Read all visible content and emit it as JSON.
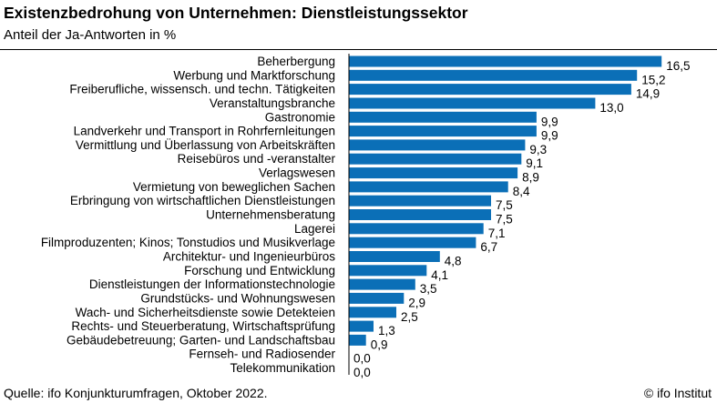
{
  "header": {
    "title": "Existenzbedrohung von Unternehmen: Dienstleistungssektor",
    "subtitle": "Anteil der Ja-Antworten in %"
  },
  "footer": {
    "source": "Quelle: ifo Konjunkturumfragen, Oktober 2022.",
    "brand": "© ifo Institut"
  },
  "colors": {
    "bar": "#0b6fb7",
    "axis": "#000000"
  },
  "chart_data": {
    "type": "bar",
    "orientation": "horizontal",
    "title": "Existenzbedrohung von Unternehmen: Dienstleistungssektor",
    "subtitle": "Anteil der Ja-Antworten in %",
    "xlim": [
      0,
      17
    ],
    "categories": [
      "Beherbergung",
      "Werbung und Marktforschung",
      "Freiberufliche, wissensch. und techn. Tätigkeiten",
      "Veranstaltungsbranche",
      "Gastronomie",
      "Landverkehr und Transport in Rohrfernleitungen",
      "Vermittlung und Überlassung von Arbeitskräften",
      "Reisebüros und -veranstalter",
      "Verlagswesen",
      "Vermietung von beweglichen Sachen",
      "Erbringung von wirtschaftlichen Dienstleistungen",
      "Unternehmensberatung",
      "Lagerei",
      "Filmproduzenten; Kinos; Tonstudios und Musikverlage",
      "Architektur- und Ingenieurbüros",
      "Forschung und Entwicklung",
      "Dienstleistungen der Informationstechnologie",
      "Grundstücks- und Wohnungswesen",
      "Wach- und Sicherheitsdienste sowie Detekteien",
      "Rechts- und Steuerberatung, Wirtschaftsprüfung",
      "Gebäudebetreuung; Garten- und Landschaftsbau",
      "Fernseh- und Radiosender",
      "Telekommunikation"
    ],
    "values": [
      16.5,
      15.2,
      14.9,
      13.0,
      9.9,
      9.9,
      9.3,
      9.1,
      8.9,
      8.4,
      7.5,
      7.5,
      7.1,
      6.7,
      4.8,
      4.1,
      3.5,
      2.9,
      2.5,
      1.3,
      0.9,
      0.0,
      0.0
    ],
    "value_labels": [
      "16,5",
      "15,2",
      "14,9",
      "13,0",
      "9,9",
      "9,9",
      "9,3",
      "9,1",
      "8,9",
      "8,4",
      "7,5",
      "7,5",
      "7,1",
      "6,7",
      "4,8",
      "4,1",
      "3,5",
      "2,9",
      "2,5",
      "1,3",
      "0,9",
      "0,0",
      "0,0"
    ]
  }
}
